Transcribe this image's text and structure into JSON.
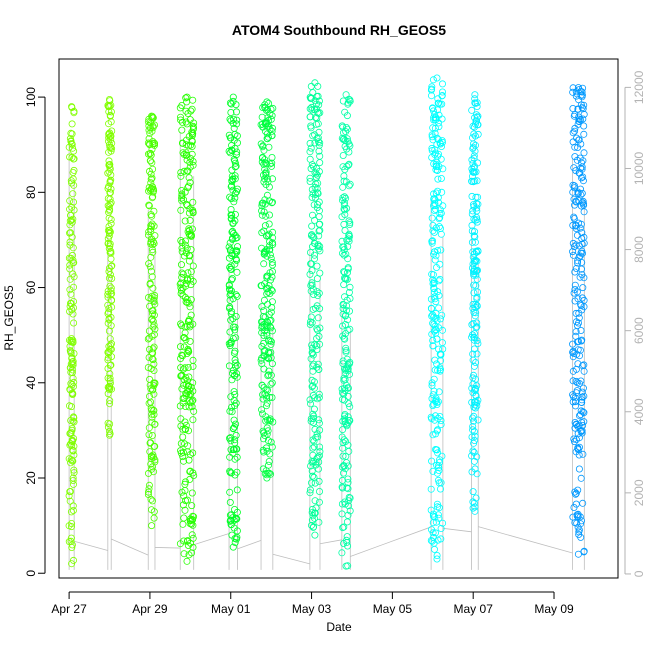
{
  "chart_data": {
    "type": "scatter",
    "title": "ATOM4 Southbound RH_GEOS5",
    "xlabel": "Date",
    "ylabel": "RH_GEOS5",
    "xlim": [
      "2017-04-26T18:00",
      "2017-05-10T14:00"
    ],
    "ylim": [
      -1,
      108
    ],
    "y2lim": [
      -100,
      12700
    ],
    "x_ticks": [
      {
        "label": "Apr 27",
        "value": "2017-04-27"
      },
      {
        "label": "Apr 29",
        "value": "2017-04-29"
      },
      {
        "label": "May 01",
        "value": "2017-05-01"
      },
      {
        "label": "May 03",
        "value": "2017-05-03"
      },
      {
        "label": "May 05",
        "value": "2017-05-05"
      },
      {
        "label": "May 07",
        "value": "2017-05-07"
      },
      {
        "label": "May 09",
        "value": "2017-05-09"
      }
    ],
    "y_ticks": [
      "0",
      "20",
      "40",
      "60",
      "80",
      "100"
    ],
    "y2_ticks": [
      "0",
      "2000",
      "4000",
      "6000",
      "8000",
      "10000",
      "12000"
    ],
    "marker": "open-circle",
    "secondary_line_color": "#bebebe",
    "flights": [
      {
        "start": "2017-04-27T00:00",
        "end": "2017-04-27T03:00",
        "ymin": 2,
        "ymax": 98,
        "color": "#80ff00"
      },
      {
        "start": "2017-04-27T23:00",
        "end": "2017-04-28T01:00",
        "ymin": 29,
        "ymax": 99.5,
        "color": "#80ff00"
      },
      {
        "start": "2017-04-28T23:00",
        "end": "2017-04-29T03:00",
        "ymin": 10,
        "ymax": 96,
        "color": "#4cff00"
      },
      {
        "start": "2017-04-29T18:00",
        "end": "2017-04-30T02:00",
        "ymin": 2.5,
        "ymax": 100,
        "color": "#26ff00"
      },
      {
        "start": "2017-04-30T23:00",
        "end": "2017-05-01T04:00",
        "ymin": 5.5,
        "ymax": 100,
        "color": "#00ff26"
      },
      {
        "start": "2017-05-01T18:00",
        "end": "2017-05-02T01:00",
        "ymin": 20,
        "ymax": 99,
        "color": "#00ff40"
      },
      {
        "start": "2017-05-02T23:00",
        "end": "2017-05-03T05:00",
        "ymin": 8,
        "ymax": 103,
        "color": "#00ff99"
      },
      {
        "start": "2017-05-03T18:00",
        "end": "2017-05-03T23:00",
        "ymin": 1.5,
        "ymax": 100.5,
        "color": "#00ffa6"
      },
      {
        "start": "2017-05-05T23:00",
        "end": "2017-05-06T06:00",
        "ymin": 3,
        "ymax": 104,
        "color": "#00ffff"
      },
      {
        "start": "2017-05-06T23:00",
        "end": "2017-05-07T03:00",
        "ymin": 13,
        "ymax": 100.5,
        "color": "#00f2ff"
      },
      {
        "start": "2017-05-09T11:00",
        "end": "2017-05-09T18:00",
        "ymin": 4,
        "ymax": 102,
        "color": "#0099ff"
      }
    ]
  }
}
